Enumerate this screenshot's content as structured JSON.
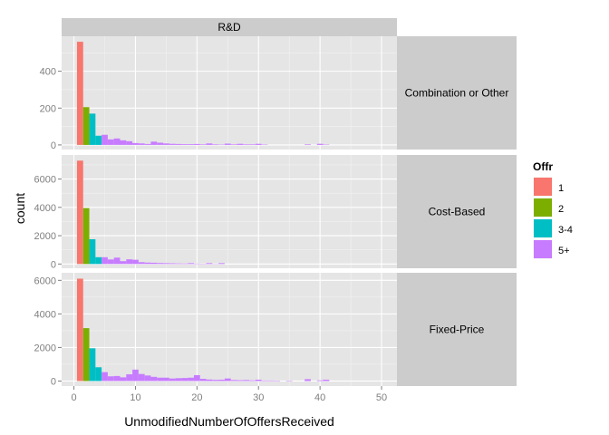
{
  "chart_data": {
    "type": "bar",
    "xlabel": "UnmodifiedNumberOfOffersReceived",
    "ylabel": "count",
    "column_facet": "R&D",
    "xlim": [
      -2,
      52.5
    ],
    "x_ticks": [
      "0",
      "10",
      "20",
      "30",
      "40",
      "50"
    ],
    "x_tick_values": [
      0,
      10,
      20,
      30,
      40,
      50
    ],
    "bin_width": 1,
    "legend": {
      "title": "Offr",
      "position": "right",
      "entries": [
        "1",
        "2",
        "3-4",
        "5+"
      ],
      "colors": [
        "#F8766D",
        "#7CAE00",
        "#00BFC4",
        "#C77CFF"
      ]
    },
    "panels": [
      {
        "facet": "Combination or Other",
        "ylim": [
          -25,
          590
        ],
        "y_ticks": [
          "0",
          "200",
          "400"
        ],
        "y_tick_values": [
          0,
          200,
          400
        ],
        "bars": [
          {
            "x": 1,
            "count": 560,
            "group": "1"
          },
          {
            "x": 2,
            "count": 205,
            "group": "2"
          },
          {
            "x": 3,
            "count": 170,
            "group": "3-4"
          },
          {
            "x": 4,
            "count": 50,
            "group": "3-4"
          },
          {
            "x": 5,
            "count": 55,
            "group": "5+"
          },
          {
            "x": 6,
            "count": 30,
            "group": "5+"
          },
          {
            "x": 7,
            "count": 35,
            "group": "5+"
          },
          {
            "x": 8,
            "count": 25,
            "group": "5+"
          },
          {
            "x": 9,
            "count": 20,
            "group": "5+"
          },
          {
            "x": 10,
            "count": 10,
            "group": "5+"
          },
          {
            "x": 11,
            "count": 8,
            "group": "5+"
          },
          {
            "x": 12,
            "count": 5,
            "group": "5+"
          },
          {
            "x": 13,
            "count": 18,
            "group": "5+"
          },
          {
            "x": 14,
            "count": 12,
            "group": "5+"
          },
          {
            "x": 15,
            "count": 8,
            "group": "5+"
          },
          {
            "x": 16,
            "count": 6,
            "group": "5+"
          },
          {
            "x": 17,
            "count": 5,
            "group": "5+"
          },
          {
            "x": 18,
            "count": 4,
            "group": "5+"
          },
          {
            "x": 19,
            "count": 4,
            "group": "5+"
          },
          {
            "x": 20,
            "count": 5,
            "group": "5+"
          },
          {
            "x": 21,
            "count": 3,
            "group": "5+"
          },
          {
            "x": 22,
            "count": 8,
            "group": "5+"
          },
          {
            "x": 23,
            "count": 3,
            "group": "5+"
          },
          {
            "x": 24,
            "count": 2,
            "group": "5+"
          },
          {
            "x": 25,
            "count": 7,
            "group": "5+"
          },
          {
            "x": 26,
            "count": 3,
            "group": "5+"
          },
          {
            "x": 27,
            "count": 6,
            "group": "5+"
          },
          {
            "x": 28,
            "count": 3,
            "group": "5+"
          },
          {
            "x": 29,
            "count": 3,
            "group": "5+"
          },
          {
            "x": 30,
            "count": 6,
            "group": "5+"
          },
          {
            "x": 31,
            "count": 2,
            "group": "5+"
          },
          {
            "x": 38,
            "count": 3,
            "group": "5+"
          },
          {
            "x": 40,
            "count": 6,
            "group": "5+"
          },
          {
            "x": 41,
            "count": 2,
            "group": "5+"
          }
        ]
      },
      {
        "facet": "Cost-Based",
        "ylim": [
          -300,
          7700
        ],
        "y_ticks": [
          "0",
          "2000",
          "4000",
          "6000"
        ],
        "y_tick_values": [
          0,
          2000,
          4000,
          6000
        ],
        "bars": [
          {
            "x": 1,
            "count": 7300,
            "group": "1"
          },
          {
            "x": 2,
            "count": 3950,
            "group": "2"
          },
          {
            "x": 3,
            "count": 1750,
            "group": "3-4"
          },
          {
            "x": 4,
            "count": 480,
            "group": "3-4"
          },
          {
            "x": 5,
            "count": 480,
            "group": "5+"
          },
          {
            "x": 6,
            "count": 320,
            "group": "5+"
          },
          {
            "x": 7,
            "count": 450,
            "group": "5+"
          },
          {
            "x": 8,
            "count": 200,
            "group": "5+"
          },
          {
            "x": 9,
            "count": 330,
            "group": "5+"
          },
          {
            "x": 10,
            "count": 300,
            "group": "5+"
          },
          {
            "x": 11,
            "count": 130,
            "group": "5+"
          },
          {
            "x": 12,
            "count": 100,
            "group": "5+"
          },
          {
            "x": 13,
            "count": 90,
            "group": "5+"
          },
          {
            "x": 14,
            "count": 70,
            "group": "5+"
          },
          {
            "x": 15,
            "count": 60,
            "group": "5+"
          },
          {
            "x": 16,
            "count": 50,
            "group": "5+"
          },
          {
            "x": 17,
            "count": 40,
            "group": "5+"
          },
          {
            "x": 18,
            "count": 35,
            "group": "5+"
          },
          {
            "x": 19,
            "count": 60,
            "group": "5+"
          },
          {
            "x": 20,
            "count": 25,
            "group": "5+"
          },
          {
            "x": 21,
            "count": 20,
            "group": "5+"
          },
          {
            "x": 22,
            "count": 60,
            "group": "5+"
          },
          {
            "x": 23,
            "count": 15,
            "group": "5+"
          },
          {
            "x": 24,
            "count": 60,
            "group": "5+"
          }
        ]
      },
      {
        "facet": "Fixed-Price",
        "ylim": [
          -300,
          6450
        ],
        "y_ticks": [
          "0",
          "2000",
          "4000",
          "6000"
        ],
        "y_tick_values": [
          0,
          2000,
          4000,
          6000
        ],
        "bars": [
          {
            "x": 1,
            "count": 6100,
            "group": "1"
          },
          {
            "x": 2,
            "count": 3150,
            "group": "2"
          },
          {
            "x": 3,
            "count": 1950,
            "group": "3-4"
          },
          {
            "x": 4,
            "count": 820,
            "group": "3-4"
          },
          {
            "x": 5,
            "count": 530,
            "group": "5+"
          },
          {
            "x": 6,
            "count": 280,
            "group": "5+"
          },
          {
            "x": 7,
            "count": 300,
            "group": "5+"
          },
          {
            "x": 8,
            "count": 220,
            "group": "5+"
          },
          {
            "x": 9,
            "count": 400,
            "group": "5+"
          },
          {
            "x": 10,
            "count": 680,
            "group": "5+"
          },
          {
            "x": 11,
            "count": 420,
            "group": "5+"
          },
          {
            "x": 12,
            "count": 330,
            "group": "5+"
          },
          {
            "x": 13,
            "count": 250,
            "group": "5+"
          },
          {
            "x": 14,
            "count": 200,
            "group": "5+"
          },
          {
            "x": 15,
            "count": 200,
            "group": "5+"
          },
          {
            "x": 16,
            "count": 150,
            "group": "5+"
          },
          {
            "x": 17,
            "count": 170,
            "group": "5+"
          },
          {
            "x": 18,
            "count": 180,
            "group": "5+"
          },
          {
            "x": 19,
            "count": 200,
            "group": "5+"
          },
          {
            "x": 20,
            "count": 350,
            "group": "5+"
          },
          {
            "x": 21,
            "count": 130,
            "group": "5+"
          },
          {
            "x": 22,
            "count": 90,
            "group": "5+"
          },
          {
            "x": 23,
            "count": 70,
            "group": "5+"
          },
          {
            "x": 24,
            "count": 80,
            "group": "5+"
          },
          {
            "x": 25,
            "count": 150,
            "group": "5+"
          },
          {
            "x": 26,
            "count": 60,
            "group": "5+"
          },
          {
            "x": 27,
            "count": 50,
            "group": "5+"
          },
          {
            "x": 28,
            "count": 60,
            "group": "5+"
          },
          {
            "x": 29,
            "count": 40,
            "group": "5+"
          },
          {
            "x": 30,
            "count": 80,
            "group": "5+"
          },
          {
            "x": 31,
            "count": 30,
            "group": "5+"
          },
          {
            "x": 32,
            "count": 30,
            "group": "5+"
          },
          {
            "x": 33,
            "count": 25,
            "group": "5+"
          },
          {
            "x": 35,
            "count": 25,
            "group": "5+"
          },
          {
            "x": 38,
            "count": 110,
            "group": "5+"
          },
          {
            "x": 40,
            "count": 40,
            "group": "5+"
          },
          {
            "x": 41,
            "count": 80,
            "group": "5+"
          }
        ]
      }
    ]
  }
}
